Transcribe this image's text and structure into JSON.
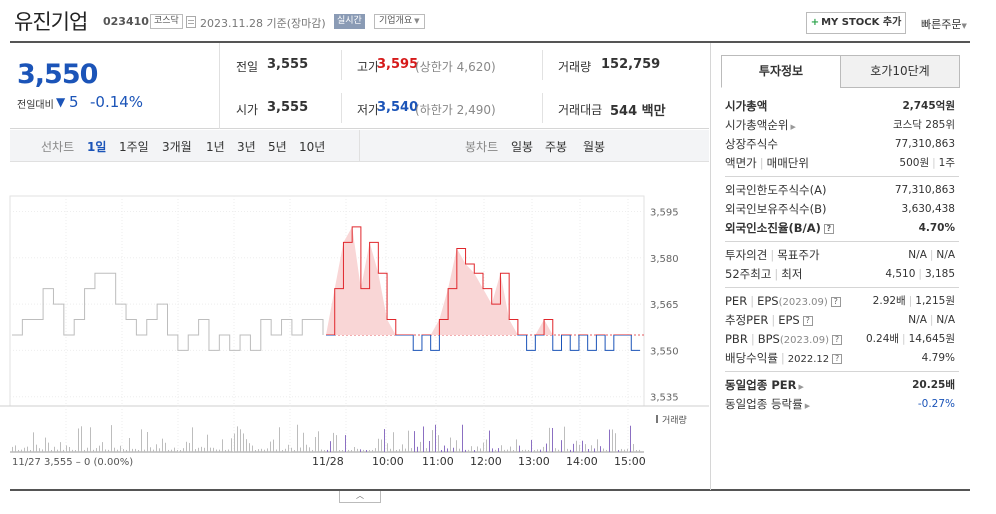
{
  "header": {
    "stock_name": "유진기업",
    "stock_code": "023410",
    "market": "코스닥",
    "base_date": "2023.11.28 기준(장마감)",
    "realtime": "실시간",
    "company_overview": "기업개요",
    "my_stock_btn": "MY STOCK 추가",
    "quick_order": "빠른주문"
  },
  "summary": {
    "current_price": "3,550",
    "change_label": "전일대비",
    "change_value": "5",
    "change_rate": "-0.14%",
    "prev_close_label": "전일",
    "prev_close": "3,555",
    "high_label": "고가",
    "high": "3,595",
    "upper_limit": "(상한가 4,620)",
    "volume_label": "거래량",
    "volume": "152,759",
    "open_label": "시가",
    "open": "3,555",
    "low_label": "저가",
    "low": "3,540",
    "lower_limit": "(하한가 2,490)",
    "trade_value_label": "거래대금",
    "trade_value": "544 백만"
  },
  "period_tabs": {
    "line_label": "선차트",
    "line_items": [
      "1일",
      "1주일",
      "3개월",
      "1년",
      "3년",
      "5년",
      "10년"
    ],
    "active": "1일",
    "candle_label": "봉차트",
    "candle_items": [
      "일봉",
      "주봉",
      "월봉"
    ]
  },
  "chart_data": {
    "type": "line",
    "title": "",
    "y_ticks": [
      3595,
      3580,
      3565,
      3550,
      3535
    ],
    "y_tick_labels": [
      "3,595",
      "3,580",
      "3,565",
      "3,550",
      "3,535"
    ],
    "ylim": [
      3532,
      3600
    ],
    "prev_close": 3555,
    "prev_day_label": "11/27  3,555 – 0 (0.00%)",
    "x_tick_labels": [
      "11/28",
      "10:00",
      "11:00",
      "12:00",
      "13:00",
      "14:00",
      "15:00"
    ],
    "volume_label": "거래량",
    "series": [
      {
        "name": "11/27",
        "color": "#bdbdbd",
        "values": [
          3555,
          3560,
          3560,
          3570,
          3565,
          3555,
          3560,
          3570,
          3575,
          3575,
          3565,
          3560,
          3555,
          3560,
          3565,
          3555,
          3550,
          3555,
          3560,
          3550,
          3555,
          3550,
          3555,
          3550,
          3560,
          3555,
          3560,
          3555,
          3560,
          3560,
          3555
        ]
      },
      {
        "name": "11/28",
        "color": "#e0272c",
        "values": [
          3555,
          3570,
          3585,
          3590,
          3570,
          3585,
          3575,
          3560,
          3555,
          3555,
          3550,
          3555,
          3550,
          3560,
          3570,
          3583,
          3578,
          3575,
          3570,
          3565,
          3575,
          3560,
          3555,
          3550,
          3555,
          3560,
          3550,
          3555,
          3550,
          3555,
          3550,
          3555,
          3550,
          3555,
          3555,
          3550,
          3550
        ]
      }
    ]
  },
  "info_panel": {
    "tab_active": "투자정보",
    "tab_inactive": "호가10단계",
    "market_cap_label": "시가총액",
    "market_cap": "2,745억원",
    "market_cap_rank_label": "시가총액순위",
    "market_cap_rank": "코스닥 285위",
    "shares_label": "상장주식수",
    "shares": "77,310,863",
    "par_label": "액면가",
    "trade_unit_label": "매매단위",
    "par": "500원",
    "trade_unit": "1주",
    "foreign_limit_label": "외국인한도주식수(A)",
    "foreign_limit": "77,310,863",
    "foreign_hold_label": "외국인보유주식수(B)",
    "foreign_hold": "3,630,438",
    "foreign_ratio_label": "외국인소진율(B/A)",
    "foreign_ratio": "4.70%",
    "opinion_label": "투자의견",
    "target_label": "목표주가",
    "opinion": "N/A",
    "target": "N/A",
    "w52_high_label": "52주최고",
    "w52_low_label": "최저",
    "w52_high": "4,510",
    "w52_low": "3,185",
    "per_label": "PER",
    "eps_label": "EPS",
    "per_eps_year": "(2023.09)",
    "per": "2.92배",
    "eps": "1,215원",
    "est_per_label": "추정PER",
    "est_eps_label": "EPS",
    "est_per": "N/A",
    "est_eps": "N/A",
    "pbr_label": "PBR",
    "bps_label": "BPS",
    "pbr_bps_year": "(2023.09)",
    "pbr": "0.24배",
    "bps": "14,645원",
    "dividend_label": "배당수익률",
    "dividend_year": "2022.12",
    "dividend": "4.79%",
    "sector_per_label": "동일업종 PER",
    "sector_per": "20.25배",
    "sector_rate_label": "동일업종 등락률",
    "sector_rate": "-0.27%"
  }
}
